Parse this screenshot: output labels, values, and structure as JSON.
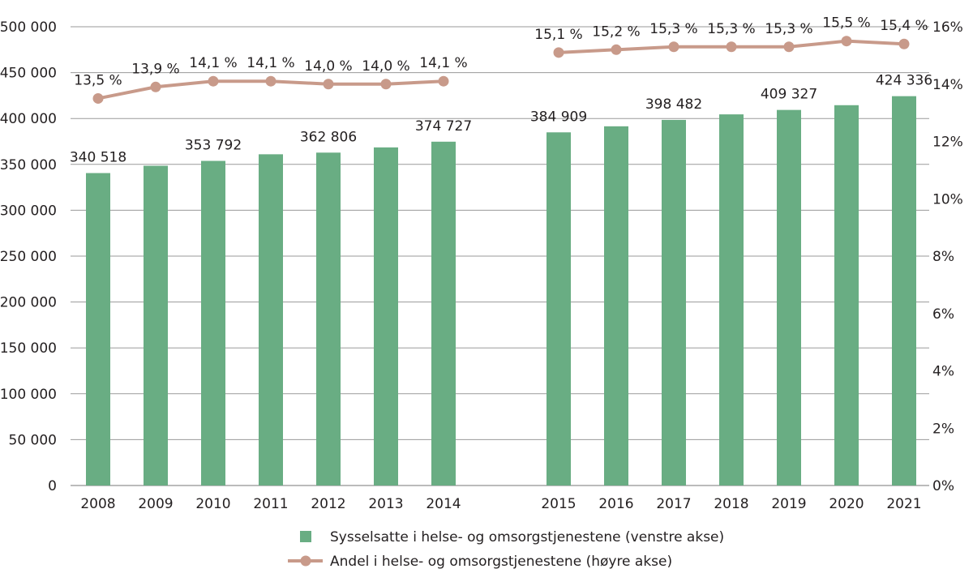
{
  "chart_data": {
    "type": "bar+line",
    "categories": [
      "2008",
      "2009",
      "2010",
      "2011",
      "2012",
      "2013",
      "2014",
      "2015",
      "2016",
      "2017",
      "2018",
      "2019",
      "2020",
      "2021"
    ],
    "series": [
      {
        "name": "Sysselsatte i helse- og omsorgstjenestene (venstre akse)",
        "type": "bar",
        "axis": "left",
        "color": "#69ad83",
        "values": [
          340518,
          348500,
          353792,
          361000,
          362806,
          368500,
          374727,
          384909,
          391500,
          398482,
          404500,
          409327,
          414500,
          424336
        ],
        "labels": [
          "340 518",
          null,
          "353 792",
          null,
          "362 806",
          null,
          "374 727",
          "384 909",
          null,
          "398 482",
          null,
          "409 327",
          null,
          "424 336"
        ]
      },
      {
        "name": "Andel  i helse- og omsorgstjenestene (høyre akse)",
        "type": "line",
        "axis": "right",
        "color": "#c89a8a",
        "values": [
          13.5,
          13.9,
          14.1,
          14.1,
          14.0,
          14.0,
          14.1,
          15.1,
          15.2,
          15.3,
          15.3,
          15.3,
          15.5,
          15.4
        ],
        "labels": [
          "13,5 %",
          "13,9 %",
          "14,1 %",
          "14,1 %",
          "14,0 %",
          "14,0 %",
          "14,1 %",
          "15,1 %",
          "15,2 %",
          "15,3 %",
          "15,3 %",
          "15,3 %",
          "15,5 %",
          "15,4 %"
        ],
        "break_after": "2014"
      }
    ],
    "left_axis": {
      "ylim": [
        0,
        500000
      ],
      "ticks": [
        "0",
        "50 000",
        "100 000",
        "150 000",
        "200 000",
        "250 000",
        "300 000",
        "350 000",
        "400 000",
        "450 000",
        "500 000"
      ]
    },
    "right_axis": {
      "ylim": [
        0,
        16
      ],
      "ticks": [
        "0%",
        "2%",
        "4%",
        "6%",
        "8%",
        "10%",
        "12%",
        "14%",
        "16%"
      ]
    },
    "grid": true,
    "legend_position": "bottom"
  }
}
